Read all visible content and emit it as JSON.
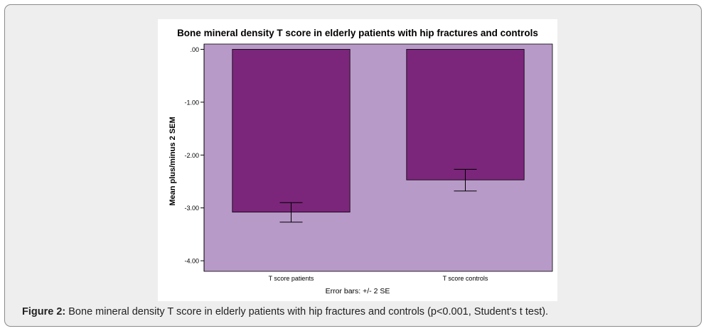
{
  "caption": {
    "label": "Figure 2:",
    "text": " Bone mineral density T score in elderly patients with hip fractures and controls (p<0.001, Student's t test)."
  },
  "colors": {
    "plot_background": "#b89ac8",
    "bar_fill": "#7b267b",
    "axis": "#000000",
    "frame_background": "#eeeeee"
  },
  "chart_data": {
    "type": "bar",
    "title": "Bone mineral density T score in elderly patients with hip fractures and controls",
    "xlabel": "",
    "ylabel": "Mean plus/minus 2 SEM",
    "footnote": "Error bars: +/- 2 SE",
    "categories": [
      "T score patients",
      "T score controls"
    ],
    "values": [
      -3.08,
      -2.47
    ],
    "error_bars": [
      {
        "low": -3.27,
        "high": -2.9
      },
      {
        "low": -2.68,
        "high": -2.27
      }
    ],
    "ylim": [
      -4.2,
      0.1
    ],
    "yticks": [
      0,
      -1,
      -2,
      -3,
      -4
    ],
    "ytick_labels": [
      ".00",
      "-1.00",
      "-2.00",
      "-3.00",
      "-4.00"
    ],
    "grid": false,
    "legend": "none"
  }
}
